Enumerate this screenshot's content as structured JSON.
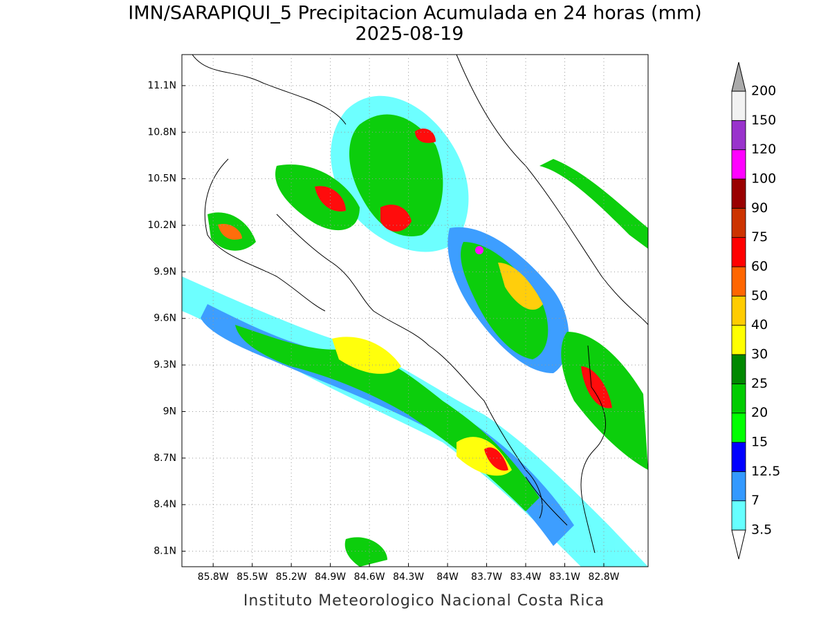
{
  "chart_data": {
    "type": "map",
    "title": "IMN/SARAPIQUI_5 Precipitacion Acumulada en 24 horas (mm)",
    "subtitle": "2025-08-19",
    "footer": "Instituto Meteorologico Nacional Costa Rica",
    "xlim": [
      -86.04,
      -82.46
    ],
    "ylim": [
      8.0,
      11.3
    ],
    "xticks": [
      {
        "value": -85.8,
        "label": "85.8W"
      },
      {
        "value": -85.5,
        "label": "85.5W"
      },
      {
        "value": -85.2,
        "label": "85.2W"
      },
      {
        "value": -84.9,
        "label": "84.9W"
      },
      {
        "value": -84.6,
        "label": "84.6W"
      },
      {
        "value": -84.3,
        "label": "84.3W"
      },
      {
        "value": -84.0,
        "label": "84W"
      },
      {
        "value": -83.7,
        "label": "83.7W"
      },
      {
        "value": -83.4,
        "label": "83.4W"
      },
      {
        "value": -83.1,
        "label": "83.1W"
      },
      {
        "value": -82.8,
        "label": "82.8W"
      }
    ],
    "yticks": [
      {
        "value": 8.1,
        "label": "8.1N"
      },
      {
        "value": 8.4,
        "label": "8.4N"
      },
      {
        "value": 8.7,
        "label": "8.7N"
      },
      {
        "value": 9.0,
        "label": "9N"
      },
      {
        "value": 9.3,
        "label": "9.3N"
      },
      {
        "value": 9.6,
        "label": "9.6N"
      },
      {
        "value": 9.9,
        "label": "9.9N"
      },
      {
        "value": 10.2,
        "label": "10.2N"
      },
      {
        "value": 10.5,
        "label": "10.5N"
      },
      {
        "value": 10.8,
        "label": "10.8N"
      },
      {
        "value": 11.1,
        "label": "11.1N"
      }
    ],
    "grid": true,
    "colorbar": {
      "levels": [
        3.5,
        7,
        12.5,
        15,
        20,
        25,
        30,
        40,
        50,
        60,
        75,
        90,
        100,
        120,
        150,
        200
      ],
      "colors": [
        "#66ffff",
        "#3399ff",
        "#0000ff",
        "#00ff00",
        "#00cc00",
        "#008800",
        "#ffff00",
        "#ffcc00",
        "#ff6600",
        "#ff0000",
        "#cc3300",
        "#990000",
        "#ff00ff",
        "#9933cc",
        "#f2f2f2"
      ],
      "under_color": "#ffffff",
      "over_color": "#aaaaaa"
    }
  }
}
